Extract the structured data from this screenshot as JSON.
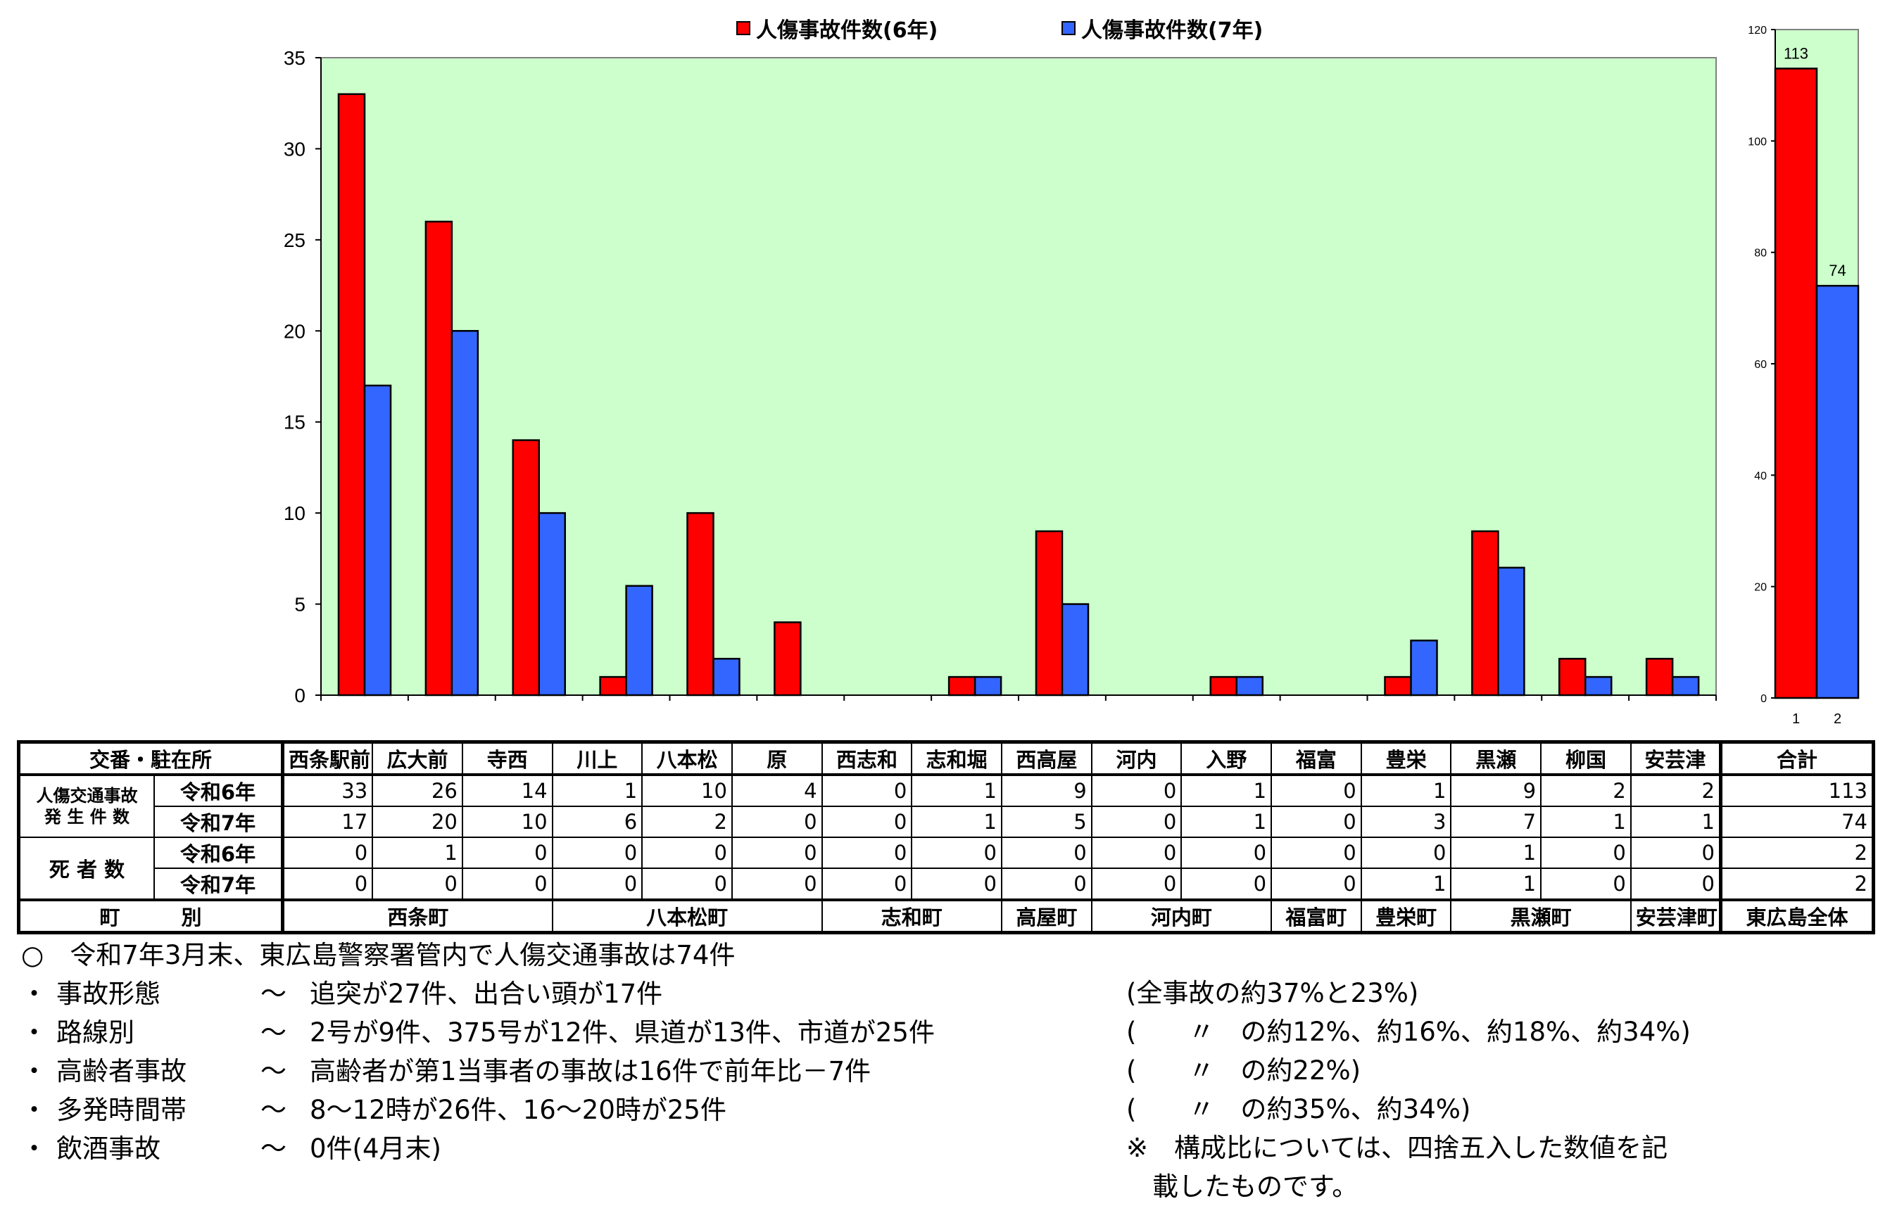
{
  "chart_data": [
    {
      "type": "bar",
      "categories": [
        "西条駅前",
        "広大前",
        "寺西",
        "川上",
        "八本松",
        "原",
        "西志和",
        "志和堀",
        "西高屋",
        "河内",
        "入野",
        "福富",
        "豊栄",
        "黒瀬",
        "柳国",
        "安芸津"
      ],
      "series": [
        {
          "name": "人傷事故件数(6年)",
          "values": [
            33,
            26,
            14,
            1,
            10,
            4,
            0,
            1,
            9,
            0,
            1,
            0,
            1,
            9,
            2,
            2
          ],
          "color": "#ff0000"
        },
        {
          "name": "人傷事故件数(7年)",
          "values": [
            17,
            20,
            10,
            6,
            2,
            0,
            0,
            1,
            5,
            0,
            1,
            0,
            3,
            7,
            1,
            1
          ],
          "color": "#3366ff"
        }
      ],
      "ylim": [
        0,
        35
      ],
      "yticks": [
        0,
        5,
        10,
        15,
        20,
        25,
        30,
        35
      ],
      "plot_background": "#ccffcc",
      "legend_position": "top"
    },
    {
      "type": "bar",
      "categories": [
        "1",
        "2"
      ],
      "values": [
        113,
        74
      ],
      "colors": [
        "#ff0000",
        "#3366ff"
      ],
      "data_labels": [
        "113",
        "74"
      ],
      "ylim": [
        0,
        120
      ],
      "yticks": [
        0,
        20,
        40,
        60,
        80,
        100,
        120
      ],
      "plot_background": "#ccffcc"
    }
  ],
  "table": {
    "header_label": "交番・駐在所",
    "stations": [
      "西条駅前",
      "広大前",
      "寺西",
      "川上",
      "八本松",
      "原",
      "西志和",
      "志和堀",
      "西高屋",
      "河内",
      "入野",
      "福富",
      "豊栄",
      "黒瀬",
      "柳国",
      "安芸津"
    ],
    "total_label": "合計",
    "group1_label_line1": "人傷交通事故",
    "group1_label_line2": "発 生 件 数",
    "group2_label": "死 者 数",
    "year6_label": "令和6年",
    "year7_label": "令和7年",
    "acc6": [
      "33",
      "26",
      "14",
      "1",
      "10",
      "4",
      "0",
      "1",
      "9",
      "0",
      "1",
      "0",
      "1",
      "9",
      "2",
      "2"
    ],
    "acc7": [
      "17",
      "20",
      "10",
      "6",
      "2",
      "0",
      "0",
      "1",
      "5",
      "0",
      "1",
      "0",
      "3",
      "7",
      "1",
      "1"
    ],
    "acc6_total": "113",
    "acc7_total": "74",
    "dead6": [
      "0",
      "1",
      "0",
      "0",
      "0",
      "0",
      "0",
      "0",
      "0",
      "0",
      "0",
      "0",
      "0",
      "1",
      "0",
      "0"
    ],
    "dead7": [
      "0",
      "0",
      "0",
      "0",
      "0",
      "0",
      "0",
      "0",
      "0",
      "0",
      "0",
      "0",
      "1",
      "1",
      "0",
      "0"
    ],
    "dead6_total": "2",
    "dead7_total": "2",
    "town_label": "町　　　別",
    "towns": [
      {
        "name": "西条町",
        "span": 3
      },
      {
        "name": "八本松町",
        "span": 3
      },
      {
        "name": "志和町",
        "span": 2
      },
      {
        "name": "高屋町",
        "span": 1
      },
      {
        "name": "河内町",
        "span": 2
      },
      {
        "name": "福富町",
        "span": 1
      },
      {
        "name": "豊栄町",
        "span": 1
      },
      {
        "name": "黒瀬町",
        "span": 2
      },
      {
        "name": "安芸津町",
        "span": 1
      }
    ],
    "town_total": "東広島全体"
  },
  "notes": {
    "headline": "○　令和7年3月末、東広島警察署管内で人傷交通事故は74件",
    "items": [
      {
        "bullet": "・",
        "label": "事故形態",
        "tilde": "～",
        "text": "追突が27件、出合い頭が17件"
      },
      {
        "bullet": "・",
        "label": "路線別",
        "tilde": "～",
        "text": "2号が9件、375号が12件、県道が13件、市道が25件"
      },
      {
        "bullet": "・",
        "label": "高齢者事故",
        "tilde": "～",
        "text": "高齢者が第1当事者の事故は16件で前年比－7件"
      },
      {
        "bullet": "・",
        "label": "多発時間帯",
        "tilde": "～",
        "text": "8～12時が26件、16～20時が25件"
      },
      {
        "bullet": "・",
        "label": "飲酒事故",
        "tilde": "～",
        "text": "0件(4月末)"
      }
    ],
    "right": [
      "(全事故の約37%と23%)",
      "(　　〃　の約12%、約16%、約18%、約34%)",
      "(　　〃　の約22%)",
      "(　　〃　の約35%、約34%)",
      "※　構成比については、四捨五入した数値を記",
      "　載したものです。"
    ]
  }
}
